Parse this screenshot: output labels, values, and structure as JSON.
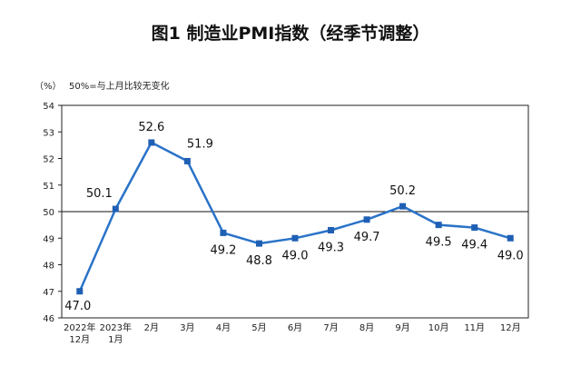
{
  "title": "图1  制造业PMI指数（经季节调整）",
  "unit_label": "（%）",
  "note": "50%=与上月比较无变化",
  "chart_data": {
    "type": "line",
    "categories": [
      [
        "2022年",
        "12月"
      ],
      [
        "2023年",
        "1月"
      ],
      [
        "2月"
      ],
      [
        "3月"
      ],
      [
        "4月"
      ],
      [
        "5月"
      ],
      [
        "6月"
      ],
      [
        "7月"
      ],
      [
        "8月"
      ],
      [
        "9月"
      ],
      [
        "10月"
      ],
      [
        "11月"
      ],
      [
        "12月"
      ]
    ],
    "series": [
      {
        "values": [
          47.0,
          50.1,
          52.6,
          51.9,
          49.2,
          48.8,
          49.0,
          49.3,
          49.7,
          50.2,
          49.5,
          49.4,
          49.0
        ]
      }
    ],
    "data_labels": [
      "47.0",
      "50.1",
      "52.6",
      "51.9",
      "49.2",
      "48.8",
      "49.0",
      "49.3",
      "49.7",
      "50.2",
      "49.5",
      "49.4",
      "49.0"
    ],
    "ylim": [
      46,
      54
    ],
    "yticks": [
      46,
      47,
      48,
      49,
      50,
      51,
      52,
      53,
      54
    ],
    "reference_line": 50,
    "grid": false,
    "line_color": "#2a73c8",
    "marker_color": "#1f5fb4"
  }
}
